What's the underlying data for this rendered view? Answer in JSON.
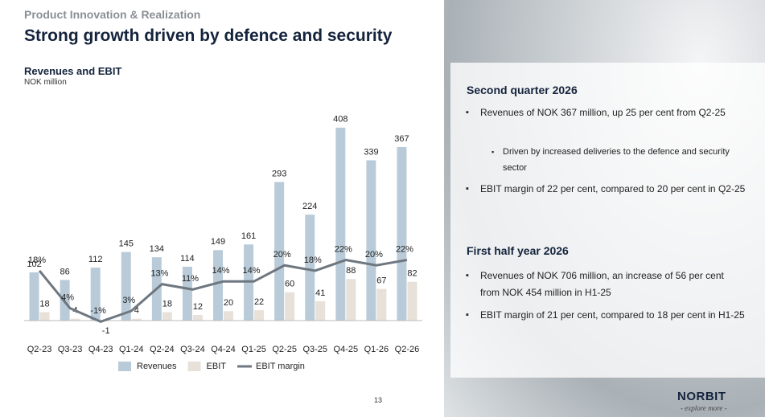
{
  "header": {
    "kicker": "Product Innovation & Realization",
    "title": "Strong growth driven by defence and security",
    "page_number": "13"
  },
  "chart_data": {
    "type": "bar",
    "title": "Revenues and EBIT",
    "subtitle": "NOK million",
    "categories": [
      "Q2-23",
      "Q3-23",
      "Q4-23",
      "Q1-24",
      "Q2-24",
      "Q3-24",
      "Q4-24",
      "Q1-25",
      "Q2-25",
      "Q3-25",
      "Q4-25",
      "Q1-26",
      "Q2-26"
    ],
    "series": [
      {
        "name": "Revenues",
        "color": "#b9cbd8",
        "values": [
          102,
          86,
          112,
          145,
          134,
          114,
          149,
          161,
          293,
          224,
          408,
          339,
          367
        ]
      },
      {
        "name": "EBIT",
        "color": "#e7e1d9",
        "values": [
          18,
          4,
          -1,
          4,
          18,
          12,
          20,
          22,
          60,
          41,
          88,
          67,
          82
        ]
      },
      {
        "name": "EBIT margin",
        "color": "#6e7780",
        "type": "line",
        "axis": "y2",
        "values": [
          18,
          4,
          -1,
          3,
          13,
          11,
          14,
          14,
          20,
          18,
          22,
          20,
          22
        ],
        "value_labels": [
          "18%",
          "4%",
          "-1%",
          "3%",
          "13%",
          "11%",
          "14%",
          "14%",
          "20%",
          "18%",
          "22%",
          "20%",
          "22%"
        ]
      }
    ],
    "ylim": [
      -5,
      440
    ],
    "y2lim": [
      -1.5,
      77
    ],
    "legend": "bottom"
  },
  "panel": {
    "sections": [
      {
        "heading": "Second quarter 2026",
        "bullets": [
          {
            "text": "Revenues of NOK 367 million, up 25 per cent from Q2-25",
            "sub": [
              "Driven by increased deliveries to the defence and security sector"
            ]
          },
          {
            "text": "EBIT margin of 22 per cent, compared to 20 per cent in Q2-25",
            "sub": []
          }
        ]
      },
      {
        "heading": "First half year 2026",
        "bullets": [
          {
            "text": "Revenues of NOK 706 million, an increase of 56 per cent from NOK 454 million in H1-25",
            "sub": []
          },
          {
            "text": "EBIT margin of 21 per cent, compared to 18 per cent in H1-25",
            "sub": []
          }
        ]
      }
    ]
  },
  "logo": {
    "name": "NORBIT",
    "tagline": "- explore more -"
  }
}
